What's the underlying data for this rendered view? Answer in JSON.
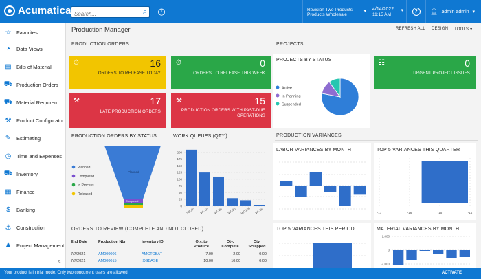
{
  "header": {
    "logo": "Acumatica",
    "search_placeholder": "Search...",
    "company_line1": "Revision Two Products",
    "company_line2": "Products Wholesale",
    "date": "4/14/2022",
    "time": "11:15 AM",
    "user": "admin admin"
  },
  "sidebar": {
    "items": [
      {
        "label": "Favorites",
        "icon": "star-icon"
      },
      {
        "label": "Data Views",
        "icon": "pie-icon"
      },
      {
        "label": "Bills of Material",
        "icon": "document-icon"
      },
      {
        "label": "Production Orders",
        "icon": "truck-icon"
      },
      {
        "label": "Material Requirem...",
        "icon": "truck-icon"
      },
      {
        "label": "Product Configurator",
        "icon": "wrench-icon"
      },
      {
        "label": "Estimating",
        "icon": "pencil-icon"
      },
      {
        "label": "Time and Expenses",
        "icon": "clock-icon"
      },
      {
        "label": "Inventory",
        "icon": "truck-icon"
      },
      {
        "label": "Finance",
        "icon": "calculator-icon"
      },
      {
        "label": "Banking",
        "icon": "dollar-icon"
      },
      {
        "label": "Construction",
        "icon": "crane-icon"
      },
      {
        "label": "Project Management",
        "icon": "person-icon"
      }
    ],
    "more": "...",
    "collapse": "<"
  },
  "page": {
    "title": "Production Manager",
    "toolbar": {
      "refresh": "REFRESH ALL",
      "design": "DESIGN",
      "tools": "TOOLS"
    }
  },
  "sections": {
    "production_orders": "PRODUCTION ORDERS",
    "projects": "PROJECTS",
    "production_variances": "PRODUCTION VARIANCES"
  },
  "tiles": {
    "release_today": {
      "value": "16",
      "label": "ORDERS TO RELEASE TODAY",
      "color": "#f2c500"
    },
    "release_week": {
      "value": "0",
      "label": "ORDERS TO RELEASE THIS WEEK",
      "color": "#2aa748"
    },
    "late": {
      "value": "17",
      "label": "LATE PRODUCTION ORDERS",
      "color": "#dc3545"
    },
    "past_due": {
      "value": "15",
      "label_line1": "PRODUCTION ORDERS WITH PAST-DUE",
      "label_line2": "OPERATIONS",
      "color": "#dc3545"
    },
    "urgent": {
      "value": "0",
      "label": "URGENT PROJECT ISSUES",
      "color": "#2aa748"
    }
  },
  "projects_by_status": {
    "title": "PROJECTS BY STATUS",
    "legend": [
      {
        "name": "Active",
        "color": "#2f7ed8"
      },
      {
        "name": "In Planning",
        "color": "#8e6dd1"
      },
      {
        "name": "Suspended",
        "color": "#26c6b0"
      }
    ],
    "values": [
      78,
      12,
      10
    ]
  },
  "orders_by_status": {
    "title": "PRODUCTION ORDERS BY STATUS",
    "legend": [
      {
        "name": "Planned",
        "color": "#3a7bd5"
      },
      {
        "name": "Completed",
        "color": "#7a4fcf"
      },
      {
        "name": "In Process",
        "color": "#2aa748"
      },
      {
        "name": "Released",
        "color": "#f2c500"
      }
    ],
    "funnel_labels": {
      "planned": "Planned",
      "completed": "Completed"
    }
  },
  "work_queues": {
    "title": "WORK QUEUES (QTY.)",
    "chart_data": {
      "type": "bar",
      "categories": [
        "WC40",
        "WC10",
        "WC20",
        "WC30",
        "WC100",
        "WC50"
      ],
      "values": [
        210,
        125,
        110,
        30,
        22,
        5
      ],
      "yticks": [
        0,
        25,
        50,
        75,
        100,
        125,
        150,
        175,
        200
      ],
      "ylim": [
        0,
        225
      ],
      "color": "#2f6ec9"
    }
  },
  "labor_variances": {
    "title": "LABOR VARIANCES BY MONTH",
    "chart_data": {
      "type": "bar",
      "values": [
        10,
        -25,
        30,
        -15,
        -45,
        -20
      ],
      "ylim": [
        -60,
        60
      ],
      "color": "#2f6ec9"
    }
  },
  "top5_quarter": {
    "title": "TOP 5 VARIANCES THIS QUARTER",
    "chart_data": {
      "type": "bar",
      "orientation": "horizontal",
      "xticks": [
        "-17",
        "-16",
        "-15",
        "-14"
      ],
      "values": [
        -15.6
      ],
      "xlim": [
        -17,
        -14
      ],
      "color": "#2f6ec9"
    }
  },
  "top5_period": {
    "title": "TOP 5 VARIANCES THIS PERIOD"
  },
  "material_variances": {
    "title": "MATERIAL VARIANCES BY MONTH",
    "chart_data": {
      "type": "bar",
      "yticks": [
        "2,000",
        "0",
        "-2,000"
      ],
      "values": [
        -2.2,
        -1.5,
        -0.1,
        -0.5,
        -1.2,
        -1.0
      ],
      "ylim": [
        -2.5,
        2.5
      ],
      "color": "#2f6ec9"
    }
  },
  "orders_to_review": {
    "title": "ORDERS TO REVIEW (COMPLETE AND NOT CLOSED)",
    "columns": [
      "End Date",
      "Production Nbr.",
      "Inventory ID",
      "Qty. to Produce",
      "Qty. Complete",
      "Qty. Scrapped"
    ],
    "rows": [
      [
        "7/7/2021",
        "AM000006",
        "AMCTOBAT",
        "7.00",
        "2.00",
        "0.00"
      ],
      [
        "7/7/2021",
        "AM000015",
        "IXGBASE",
        "10.00",
        "10.00",
        "0.00"
      ]
    ]
  },
  "status_bar": {
    "message": "Your product is in trial mode. Only two concurrent users are allowed.",
    "activate": "ACTIVATE"
  }
}
